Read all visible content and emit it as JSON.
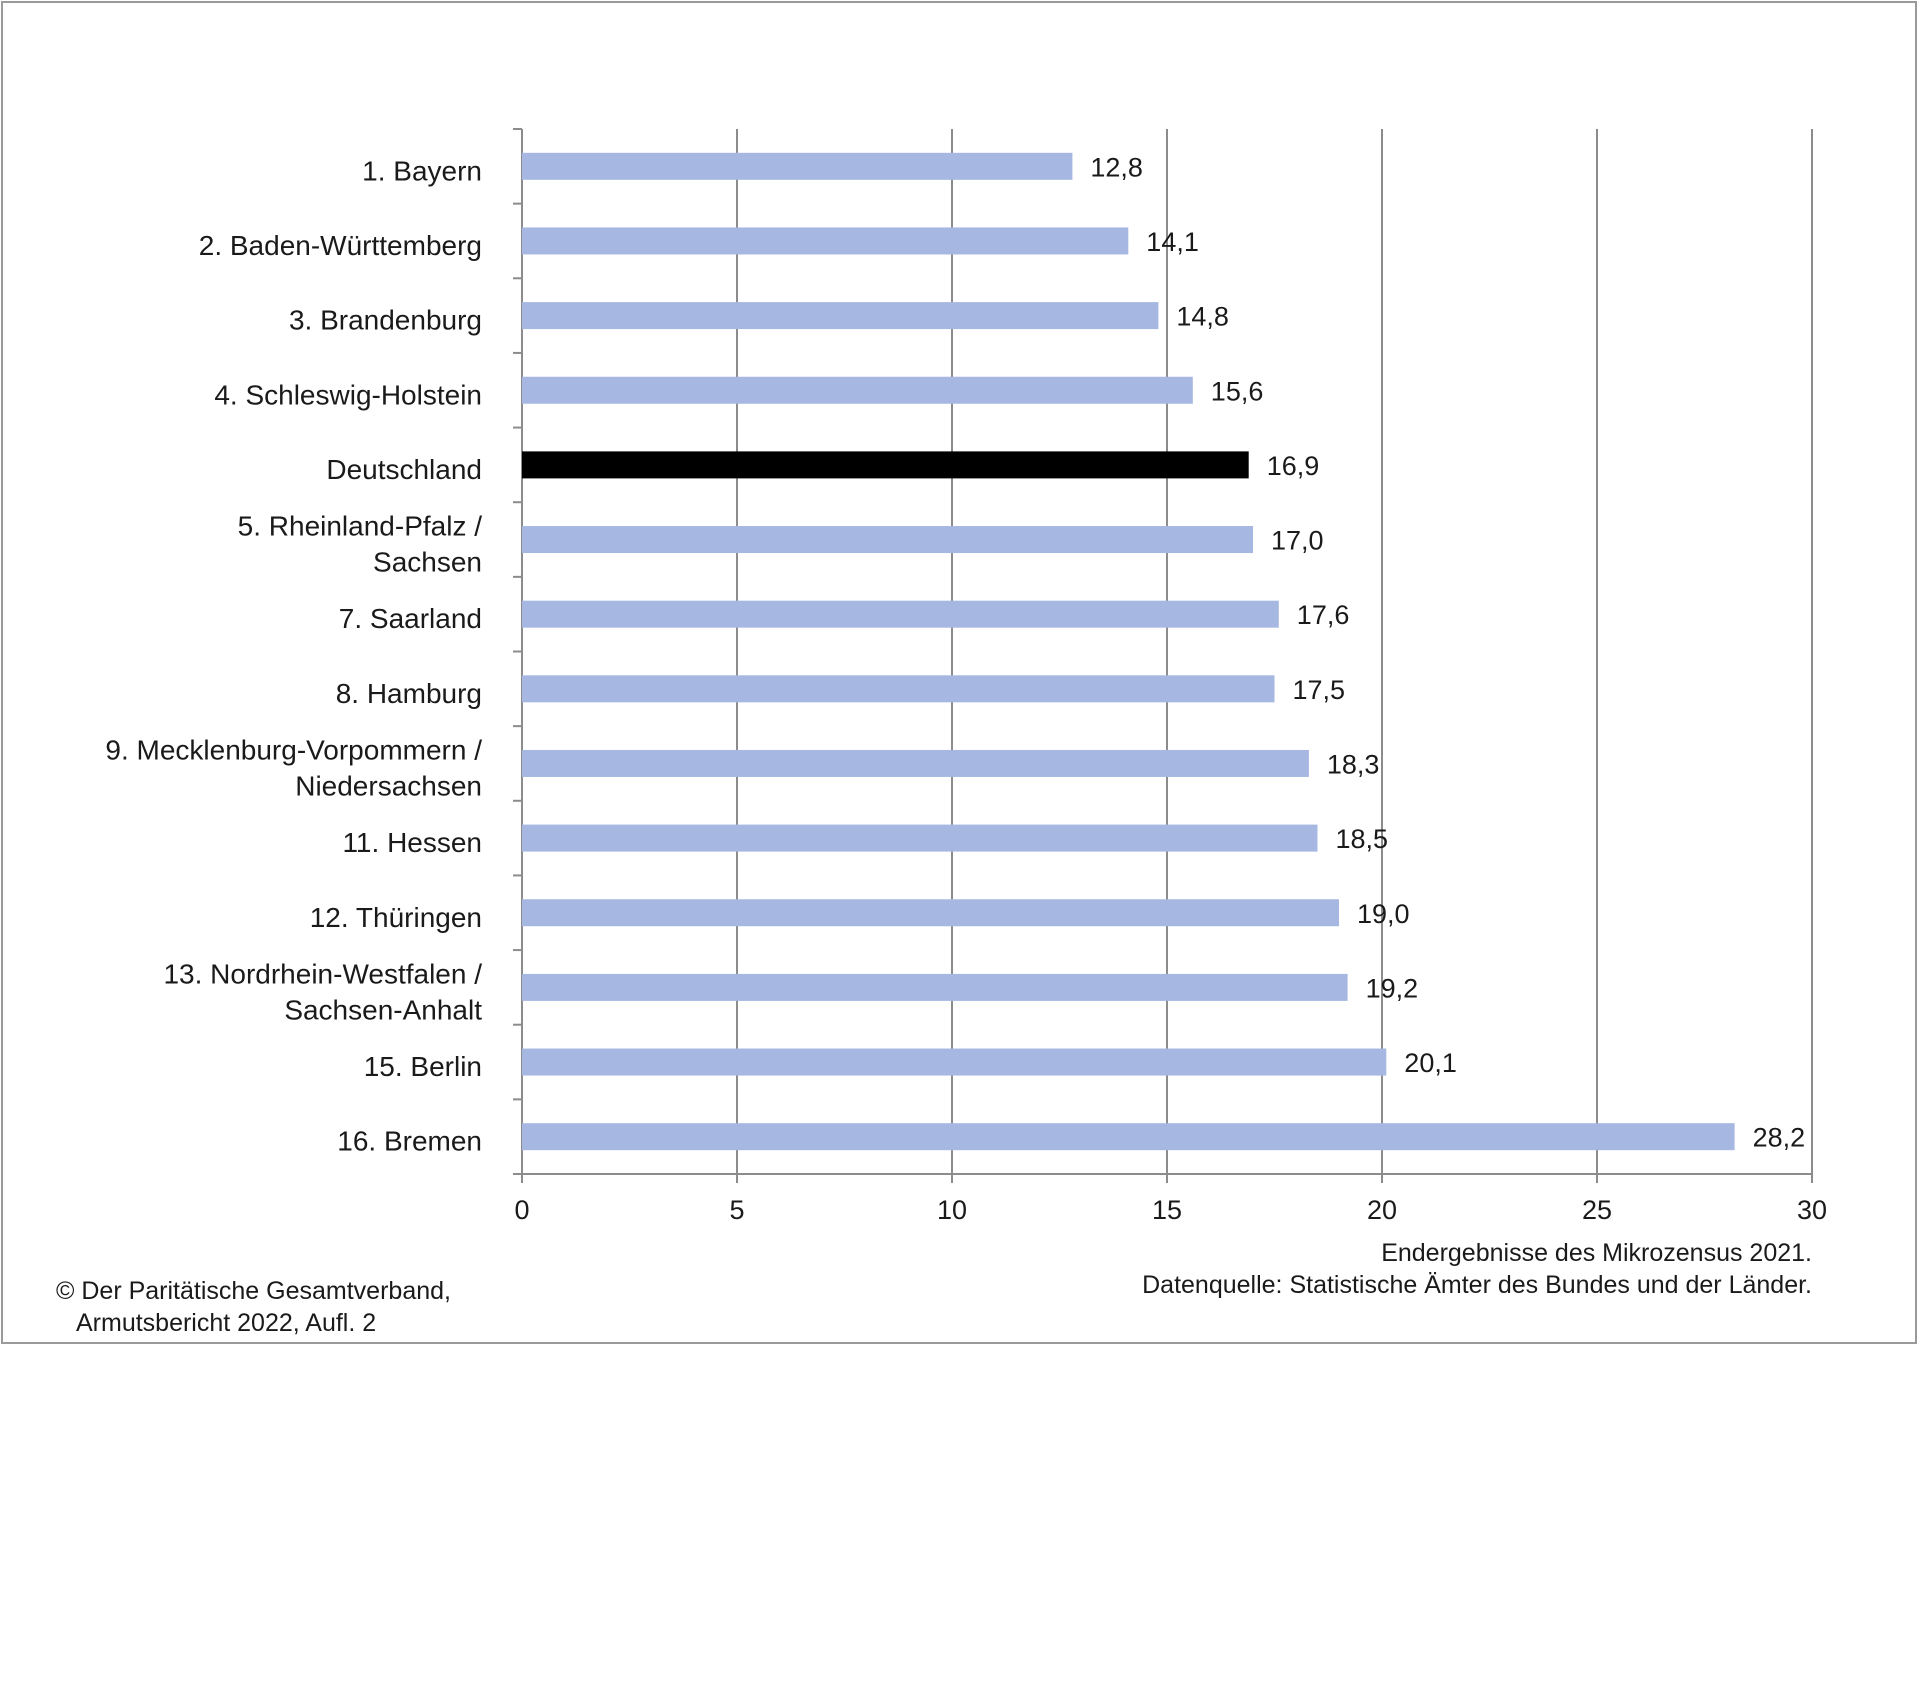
{
  "chart_data": {
    "type": "bar",
    "orientation": "horizontal",
    "categories": [
      [
        "1. Bayern"
      ],
      [
        "2. Baden-Württemberg"
      ],
      [
        "3. Brandenburg"
      ],
      [
        "4. Schleswig-Holstein"
      ],
      [
        "Deutschland"
      ],
      [
        "5. Rheinland-Pfalz /",
        "Sachsen"
      ],
      [
        "7. Saarland"
      ],
      [
        "8. Hamburg"
      ],
      [
        "9. Mecklenburg-Vorpommern /",
        "Niedersachsen"
      ],
      [
        "11. Hessen"
      ],
      [
        "12. Thüringen"
      ],
      [
        "13. Nordrhein-Westfalen /",
        "Sachsen-Anhalt"
      ],
      [
        "15. Berlin"
      ],
      [
        "16. Bremen"
      ]
    ],
    "values": [
      12.8,
      14.1,
      14.8,
      15.6,
      16.9,
      17.0,
      17.6,
      17.5,
      18.3,
      18.5,
      19.0,
      19.2,
      20.1,
      28.2
    ],
    "value_labels": [
      "12,8",
      "14,1",
      "14,8",
      "15,6",
      "16,9",
      "17,0",
      "17,6",
      "17,5",
      "18,3",
      "18,5",
      "19,0",
      "19,2",
      "20,1",
      "28,2"
    ],
    "highlight_index": 4,
    "xlim": [
      0,
      30
    ],
    "xticks": [
      0,
      5,
      10,
      15,
      20,
      25,
      30
    ],
    "xtick_labels": [
      "0",
      "5",
      "10",
      "15",
      "20",
      "25",
      "30"
    ],
    "grid": "vertical",
    "title": "",
    "xlabel": "",
    "ylabel": ""
  },
  "colors": {
    "bar": "#a6b7e2",
    "highlight_bar": "#000000",
    "gridline": "#8c8c8c",
    "axis": "#8c8c8c",
    "border": "#9a9a9a"
  },
  "notes": {
    "source_line1": "Endergebnisse des Mikrozensus 2021.",
    "source_line2": "Datenquelle: Statistische Ämter des Bundes und der Länder.",
    "copyright_line1": "© Der Paritätische Gesamtverband,",
    "copyright_line2": "Armutsbericht 2022, Aufl. 2"
  }
}
